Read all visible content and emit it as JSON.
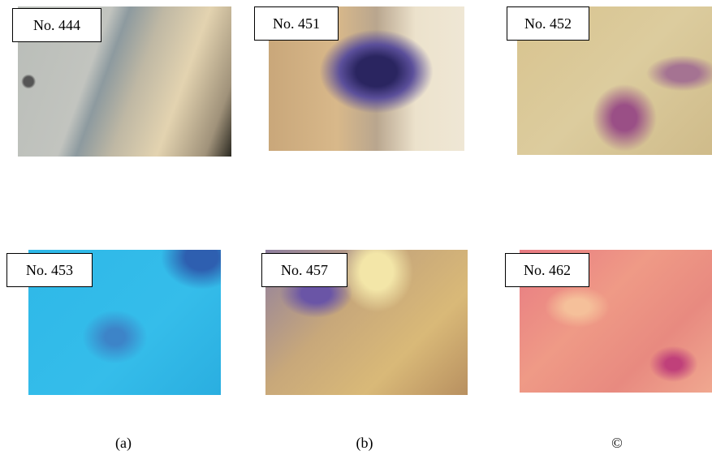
{
  "panels": [
    {
      "label": "No. 444"
    },
    {
      "label": "No. 451"
    },
    {
      "label": "No. 452"
    },
    {
      "label": "No. 453"
    },
    {
      "label": "No. 457"
    },
    {
      "label": "No. 462"
    }
  ],
  "captions": [
    "(a)",
    "(b)",
    "©"
  ]
}
